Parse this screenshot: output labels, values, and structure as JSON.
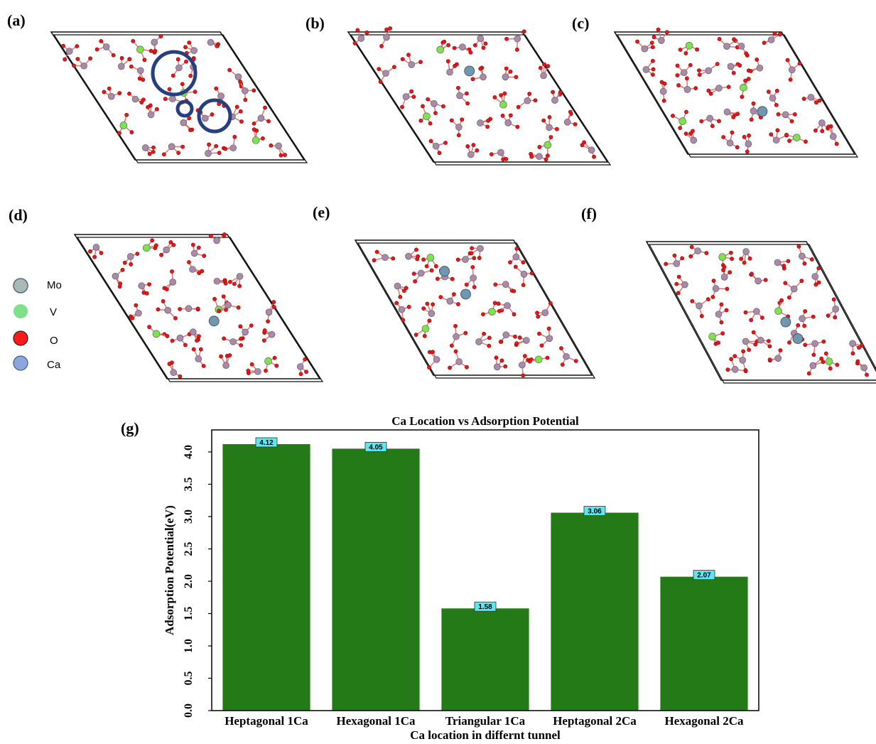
{
  "panels": {
    "labels": [
      "(a)",
      "(b)",
      "(c)",
      "(d)",
      "(e)",
      "(f)",
      "(g)"
    ]
  },
  "legend": [
    "Mo",
    "V",
    "O",
    "Ca"
  ],
  "chart_data": {
    "type": "bar",
    "title": "Ca Location vs Adsorption Potential",
    "xlabel": "Ca location in differnt tunnel",
    "ylabel": "Adsorption Potential(eV)",
    "categories": [
      "Heptagonal 1Ca",
      "Hexagonal 1Ca",
      "Triangular 1Ca",
      "Heptagonal 2Ca",
      "Hexagonal 2Ca"
    ],
    "values": [
      4.12,
      4.05,
      1.58,
      3.06,
      2.07
    ],
    "color": "#237a17",
    "ylim": [
      0,
      4.34
    ],
    "yticks": [
      {
        "value": 0,
        "label": "0.0"
      },
      0.5,
      {
        "value": 1,
        "label": "1.0"
      },
      1.5,
      {
        "value": 2,
        "label": "2.0"
      },
      2.5,
      {
        "value": 3,
        "label": "3.0"
      },
      3.5,
      {
        "value": 4,
        "label": "4.0"
      }
    ],
    "grid": false
  }
}
